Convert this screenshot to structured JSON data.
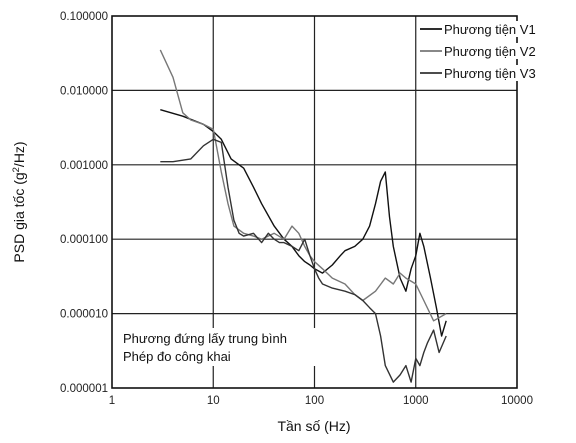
{
  "chart_data": {
    "type": "line",
    "title": "",
    "xlabel": "Tần số (Hz)",
    "ylabel_main": "PSD gia tốc (g",
    "ylabel_sup": "2",
    "ylabel_tail": "/Hz)",
    "xscale": "log",
    "yscale": "log",
    "xlim": [
      1,
      10000
    ],
    "ylim": [
      1e-06,
      0.1
    ],
    "grid": true,
    "legend_position": "top-right",
    "x_ticks": [
      "1",
      "10",
      "100",
      "1000",
      "10000"
    ],
    "y_ticks": [
      "0.000001",
      "0.000010",
      "0.000100",
      "0.001000",
      "0.010000",
      "0.100000"
    ],
    "annotations": [
      "Phương đứng lấy trung bình",
      "Phép đo công khai"
    ],
    "series": [
      {
        "name": "Phương tiện V1",
        "color": "#111111",
        "x": [
          3,
          5,
          8,
          10,
          12,
          15,
          20,
          25,
          30,
          40,
          50,
          60,
          70,
          80,
          90,
          100,
          120,
          150,
          180,
          200,
          250,
          300,
          350,
          400,
          450,
          500,
          550,
          600,
          700,
          800,
          900,
          1000,
          1100,
          1200,
          1400,
          1600,
          1800,
          2000
        ],
        "y": [
          0.0055,
          0.0045,
          0.0035,
          0.0028,
          0.0022,
          0.0012,
          0.0009,
          0.0005,
          0.0003,
          0.00015,
          0.0001,
          8e-05,
          6e-05,
          5e-05,
          4.5e-05,
          4e-05,
          3.5e-05,
          4.5e-05,
          6e-05,
          7e-05,
          8e-05,
          0.0001,
          0.00015,
          0.0003,
          0.0006,
          0.0008,
          0.0002,
          8e-05,
          3e-05,
          2e-05,
          4e-05,
          6e-05,
          0.00012,
          8e-05,
          3e-05,
          1.2e-05,
          5e-06,
          8e-06
        ]
      },
      {
        "name": "Phương tiện V2",
        "color": "#777777",
        "x": [
          3,
          4,
          5,
          6,
          8,
          10,
          12,
          14,
          16,
          20,
          25,
          30,
          40,
          50,
          60,
          70,
          80,
          90,
          100,
          120,
          150,
          200,
          250,
          300,
          400,
          500,
          600,
          700,
          800,
          1000,
          1200,
          1500,
          2000
        ],
        "y": [
          0.035,
          0.015,
          0.005,
          0.004,
          0.0035,
          0.003,
          0.0008,
          0.0003,
          0.00015,
          0.00012,
          0.00011,
          0.0001,
          0.00012,
          0.0001,
          0.00015,
          0.00012,
          8e-05,
          6e-05,
          5e-05,
          4e-05,
          3e-05,
          2.5e-05,
          1.8e-05,
          1.5e-05,
          2e-05,
          3e-05,
          2.5e-05,
          3.5e-05,
          3e-05,
          2.5e-05,
          1.5e-05,
          8e-06,
          1e-05
        ]
      },
      {
        "name": "Phương tiện V3",
        "color": "#333333",
        "x": [
          3,
          4,
          6,
          8,
          10,
          12,
          14,
          16,
          18,
          20,
          25,
          30,
          35,
          40,
          45,
          50,
          60,
          70,
          80,
          90,
          100,
          110,
          120,
          150,
          200,
          250,
          300,
          350,
          400,
          450,
          500,
          600,
          700,
          800,
          900,
          1000,
          1100,
          1200,
          1300,
          1500,
          1700,
          2000
        ],
        "y": [
          0.0011,
          0.0011,
          0.0012,
          0.0018,
          0.0022,
          0.002,
          0.0005,
          0.00018,
          0.00012,
          0.00011,
          0.00012,
          9e-05,
          0.00012,
          0.0001,
          9e-05,
          9e-05,
          8e-05,
          7e-05,
          0.0001,
          6e-05,
          4e-05,
          3e-05,
          2.5e-05,
          2.2e-05,
          2e-05,
          1.8e-05,
          1.5e-05,
          1.2e-05,
          1e-05,
          5e-06,
          2e-06,
          1.2e-06,
          1.5e-06,
          2e-06,
          1.2e-06,
          2.5e-06,
          2e-06,
          3e-06,
          4e-06,
          6e-06,
          3e-06,
          5e-06
        ]
      }
    ]
  }
}
